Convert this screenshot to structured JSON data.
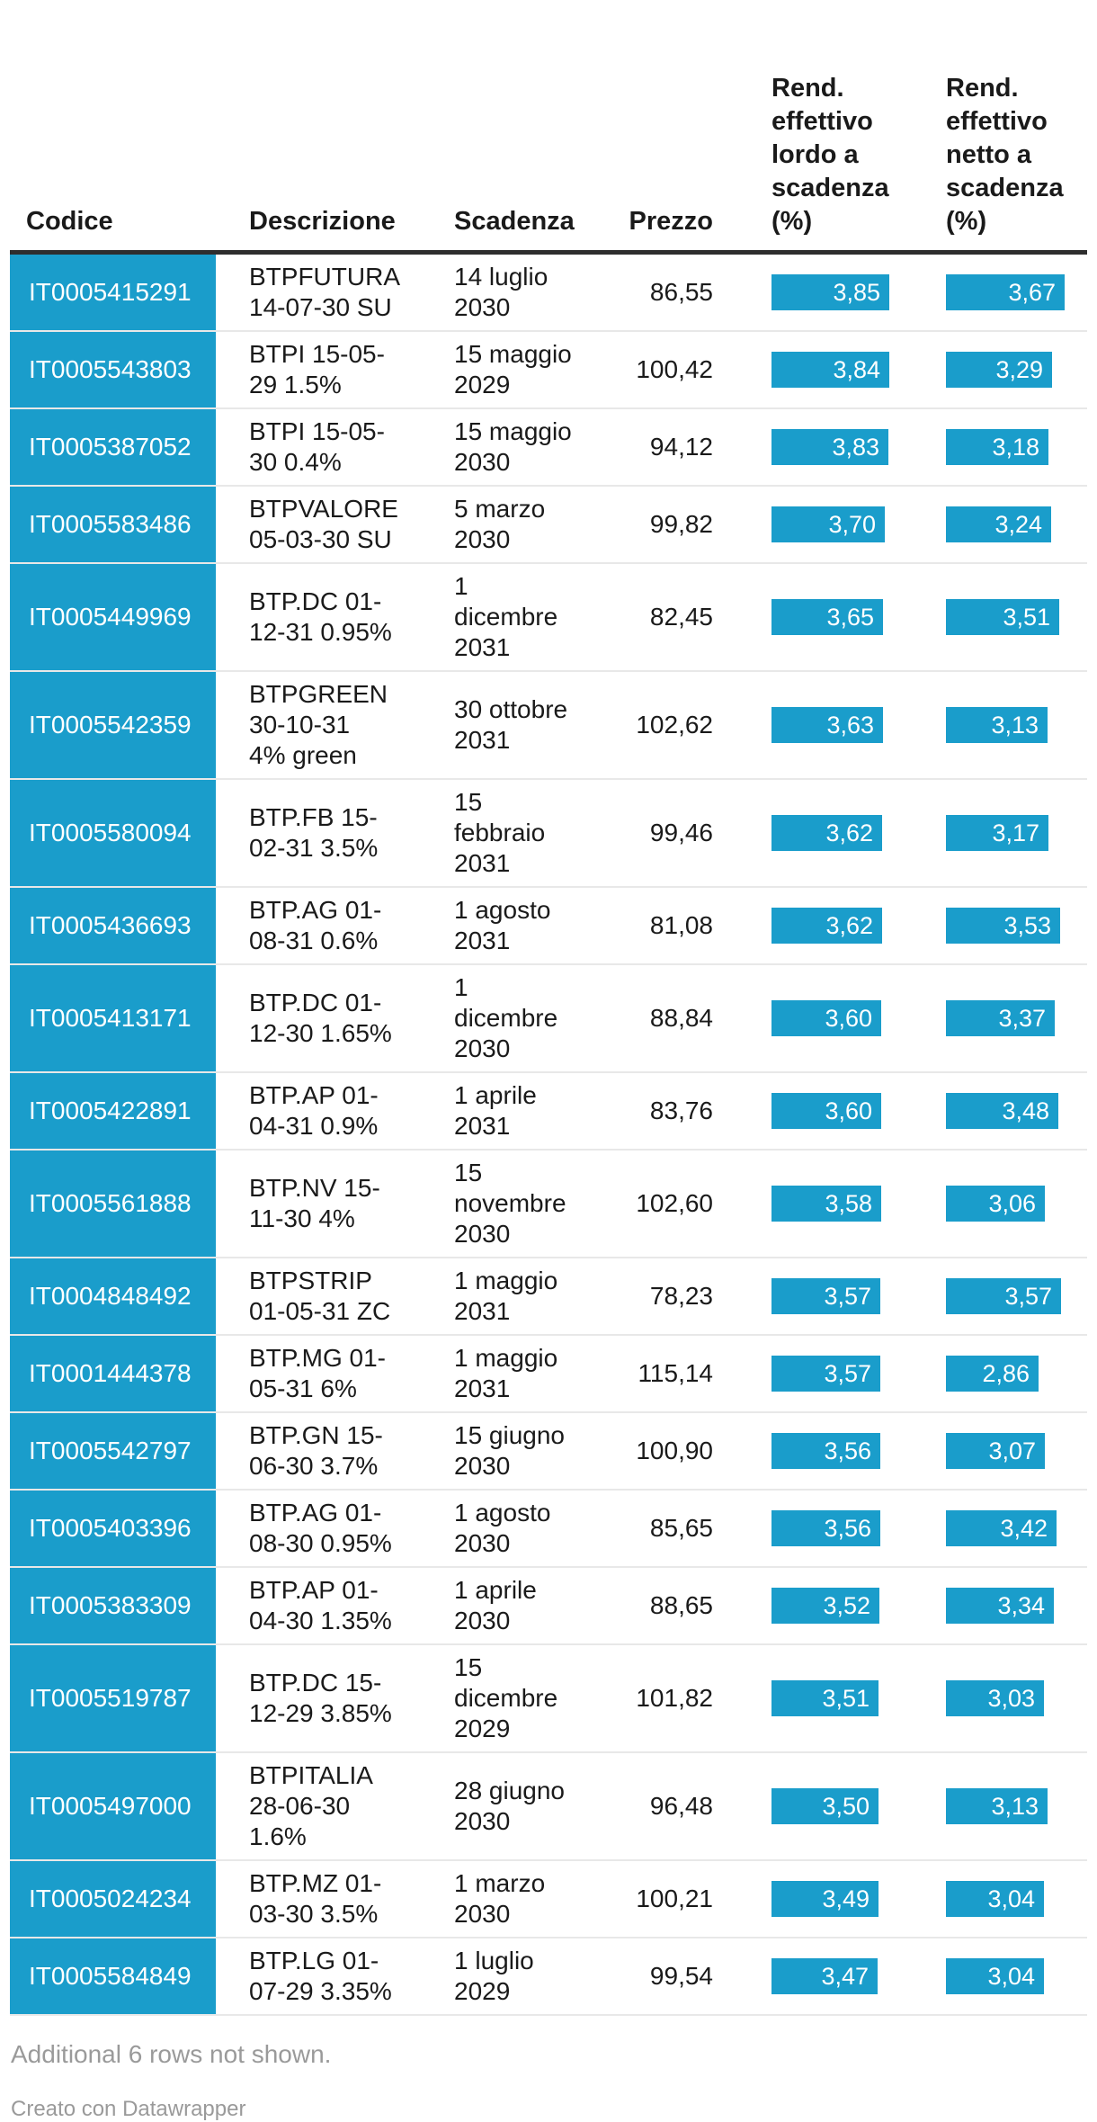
{
  "colors": {
    "accent": "#1a9dcb",
    "header_rule": "#2e2e2e",
    "row_separator": "#e8e8e8",
    "text_dark": "#1a1a1a",
    "text_muted": "#9a9a9a",
    "bar_label": "#ffffff"
  },
  "chart_data": {
    "type": "table",
    "columns": [
      "Codice",
      "Descrizione",
      "Scadenza",
      "Prezzo",
      "Rend.\neffettivo\nlordo a\nscadenza\n(%)",
      "Rend.\neffettivo\nnetto a\nscadenza\n(%)"
    ],
    "bar_columns_note": "lordo and netto render as left-aligned bars scaled from 0 to the column maximum",
    "rows": [
      {
        "codice": "IT0005415291",
        "descrizione": "BTPFUTURA\n14-07-30 SU",
        "scadenza": "14 luglio\n2030",
        "prezzo": "86,55",
        "lordo": "3,85",
        "netto": "3,67"
      },
      {
        "codice": "IT0005543803",
        "descrizione": "BTPI 15-05-\n29 1.5%",
        "scadenza": "15 maggio\n2029",
        "prezzo": "100,42",
        "lordo": "3,84",
        "netto": "3,29"
      },
      {
        "codice": "IT0005387052",
        "descrizione": "BTPI 15-05-\n30 0.4%",
        "scadenza": "15 maggio\n2030",
        "prezzo": "94,12",
        "lordo": "3,83",
        "netto": "3,18"
      },
      {
        "codice": "IT0005583486",
        "descrizione": "BTPVALORE\n05-03-30 SU",
        "scadenza": "5 marzo\n2030",
        "prezzo": "99,82",
        "lordo": "3,70",
        "netto": "3,24"
      },
      {
        "codice": "IT0005449969",
        "descrizione": "BTP.DC 01-\n12-31 0.95%",
        "scadenza": "1\ndicembre\n2031",
        "prezzo": "82,45",
        "lordo": "3,65",
        "netto": "3,51"
      },
      {
        "codice": "IT0005542359",
        "descrizione": "BTPGREEN\n30-10-31\n4% green",
        "scadenza": "30 ottobre\n2031",
        "prezzo": "102,62",
        "lordo": "3,63",
        "netto": "3,13"
      },
      {
        "codice": "IT0005580094",
        "descrizione": "BTP.FB 15-\n02-31 3.5%",
        "scadenza": "15\nfebbraio\n2031",
        "prezzo": "99,46",
        "lordo": "3,62",
        "netto": "3,17"
      },
      {
        "codice": "IT0005436693",
        "descrizione": "BTP.AG 01-\n08-31 0.6%",
        "scadenza": "1 agosto\n2031",
        "prezzo": "81,08",
        "lordo": "3,62",
        "netto": "3,53"
      },
      {
        "codice": "IT0005413171",
        "descrizione": "BTP.DC 01-\n12-30 1.65%",
        "scadenza": "1\ndicembre\n2030",
        "prezzo": "88,84",
        "lordo": "3,60",
        "netto": "3,37"
      },
      {
        "codice": "IT0005422891",
        "descrizione": "BTP.AP 01-\n04-31 0.9%",
        "scadenza": "1 aprile\n2031",
        "prezzo": "83,76",
        "lordo": "3,60",
        "netto": "3,48"
      },
      {
        "codice": "IT0005561888",
        "descrizione": "BTP.NV 15-\n11-30 4%",
        "scadenza": "15\nnovembre\n2030",
        "prezzo": "102,60",
        "lordo": "3,58",
        "netto": "3,06"
      },
      {
        "codice": "IT0004848492",
        "descrizione": "BTPSTRIP\n01-05-31 ZC",
        "scadenza": "1 maggio\n2031",
        "prezzo": "78,23",
        "lordo": "3,57",
        "netto": "3,57"
      },
      {
        "codice": "IT0001444378",
        "descrizione": "BTP.MG 01-\n05-31 6%",
        "scadenza": "1 maggio\n2031",
        "prezzo": "115,14",
        "lordo": "3,57",
        "netto": "2,86"
      },
      {
        "codice": "IT0005542797",
        "descrizione": "BTP.GN 15-\n06-30 3.7%",
        "scadenza": "15 giugno\n2030",
        "prezzo": "100,90",
        "lordo": "3,56",
        "netto": "3,07"
      },
      {
        "codice": "IT0005403396",
        "descrizione": "BTP.AG 01-\n08-30 0.95%",
        "scadenza": "1 agosto\n2030",
        "prezzo": "85,65",
        "lordo": "3,56",
        "netto": "3,42"
      },
      {
        "codice": "IT0005383309",
        "descrizione": "BTP.AP 01-\n04-30 1.35%",
        "scadenza": "1 aprile\n2030",
        "prezzo": "88,65",
        "lordo": "3,52",
        "netto": "3,34"
      },
      {
        "codice": "IT0005519787",
        "descrizione": "BTP.DC 15-\n12-29 3.85%",
        "scadenza": "15\ndicembre\n2029",
        "prezzo": "101,82",
        "lordo": "3,51",
        "netto": "3,03"
      },
      {
        "codice": "IT0005497000",
        "descrizione": "BTPITALIA\n28-06-30\n1.6%",
        "scadenza": "28 giugno\n2030",
        "prezzo": "96,48",
        "lordo": "3,50",
        "netto": "3,13"
      },
      {
        "codice": "IT0005024234",
        "descrizione": "BTP.MZ 01-\n03-30 3.5%",
        "scadenza": "1 marzo\n2030",
        "prezzo": "100,21",
        "lordo": "3,49",
        "netto": "3,04"
      },
      {
        "codice": "IT0005584849",
        "descrizione": "BTP.LG 01-\n07-29 3.35%",
        "scadenza": "1 luglio\n2029",
        "prezzo": "99,54",
        "lordo": "3,47",
        "netto": "3,04"
      }
    ]
  },
  "footer": {
    "note": "Additional 6 rows not shown.",
    "credit": "Creato con Datawrapper"
  }
}
